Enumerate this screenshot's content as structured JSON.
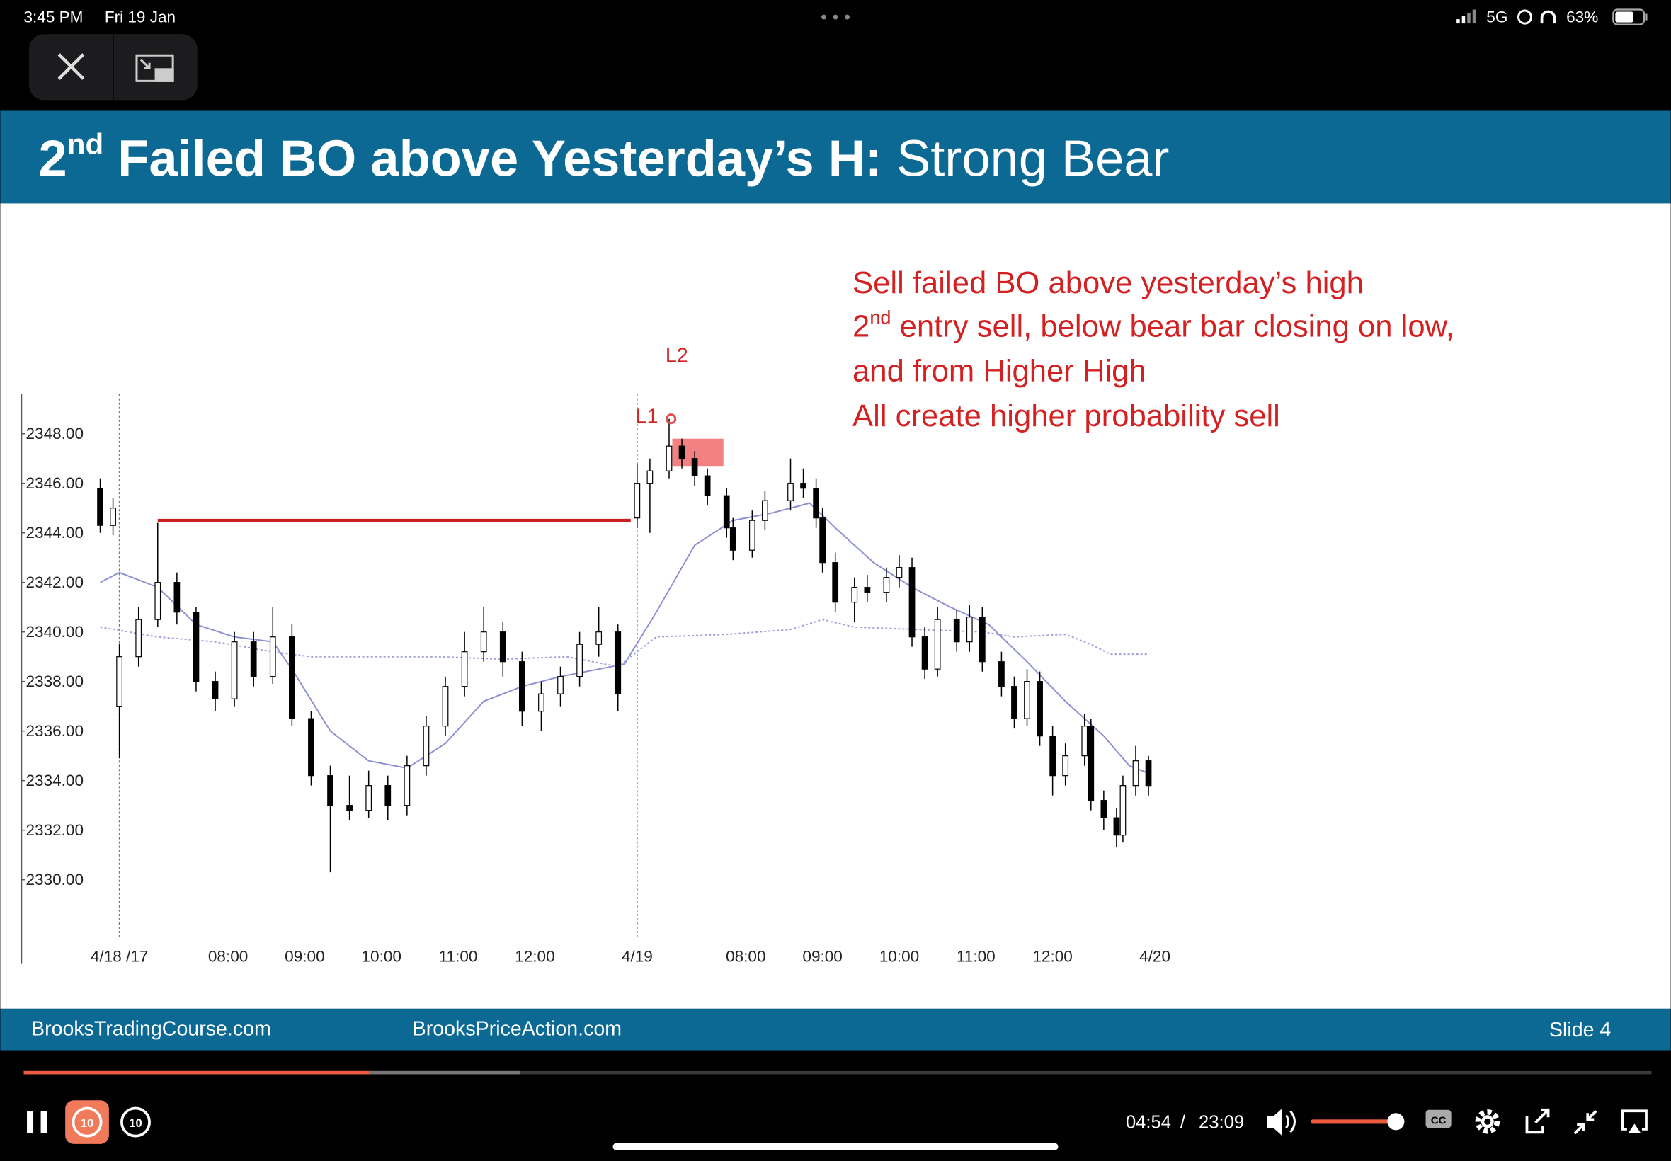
{
  "status_bar": {
    "time": "3:45 PM",
    "date": "Fri 19 Jan",
    "network": "5G",
    "battery": "63%"
  },
  "slide": {
    "title": {
      "ordinal": "2",
      "ordinal_suffix": "nd",
      "bold": "Failed BO above Yesterday’s H:",
      "light": "Strong Bear"
    },
    "notes": [
      {
        "text": "Sell failed BO above yesterday’s high"
      },
      {
        "ordinal": "2",
        "ordinal_suffix": "nd",
        "text": "entry sell, below bear bar closing on low,"
      },
      {
        "text": "and from Higher High"
      },
      {
        "text": "All create higher probability sell"
      }
    ],
    "footer": {
      "left": "BrooksTradingCourse.com",
      "middle": "BrooksPriceAction.com",
      "right": "Slide 4"
    }
  },
  "chart_data": {
    "type": "candlestick",
    "x": [
      -3,
      -1,
      0,
      3,
      6,
      9,
      12,
      15,
      18,
      21,
      24,
      27,
      30,
      33,
      36,
      39,
      42,
      45,
      48,
      51,
      54,
      57,
      60,
      63,
      66,
      69,
      72,
      75,
      78,
      81,
      83,
      86,
      88,
      90,
      92,
      95,
      96,
      99,
      101,
      105,
      107,
      109,
      110,
      112,
      115,
      117,
      120,
      122,
      124,
      126,
      128,
      131,
      133,
      135,
      138,
      140,
      142,
      144,
      146,
      148,
      151,
      152,
      154,
      156,
      157,
      159,
      161
    ],
    "open": [
      2345.8,
      2344.3,
      2337.0,
      2339.0,
      2340.5,
      2342.0,
      2340.8,
      2338.0,
      2337.3,
      2339.6,
      2338.2,
      2339.8,
      2336.5,
      2334.2,
      2333.0,
      2332.8,
      2333.8,
      2333.0,
      2334.6,
      2336.2,
      2337.8,
      2339.2,
      2340.0,
      2338.8,
      2336.8,
      2337.5,
      2338.2,
      2339.5,
      2340.0,
      2344.6,
      2346.0,
      2346.5,
      2347.5,
      2347.0,
      2346.3,
      2345.5,
      2344.2,
      2343.3,
      2344.5,
      2345.3,
      2346.0,
      2345.8,
      2344.6,
      2342.8,
      2341.2,
      2341.8,
      2341.6,
      2342.2,
      2342.6,
      2339.8,
      2338.5,
      2340.5,
      2339.6,
      2340.6,
      2338.8,
      2337.8,
      2336.5,
      2338.0,
      2335.8,
      2334.2,
      2335.0,
      2336.2,
      2333.2,
      2332.5,
      2331.8,
      2333.8,
      2334.8
    ],
    "high": [
      2346.2,
      2345.4,
      2339.5,
      2341.0,
      2344.4,
      2342.4,
      2341.0,
      2338.4,
      2340.0,
      2340.0,
      2341.0,
      2340.3,
      2336.8,
      2334.6,
      2334.2,
      2334.4,
      2334.2,
      2335.0,
      2336.6,
      2338.2,
      2340.0,
      2341.0,
      2340.4,
      2339.2,
      2338.0,
      2338.6,
      2340.0,
      2341.0,
      2340.3,
      2346.8,
      2347.0,
      2348.6,
      2347.8,
      2347.3,
      2346.6,
      2345.8,
      2344.6,
      2344.9,
      2345.7,
      2347.0,
      2346.6,
      2346.2,
      2345.0,
      2343.2,
      2342.2,
      2342.3,
      2342.6,
      2343.1,
      2343.0,
      2340.2,
      2341.0,
      2340.9,
      2341.1,
      2341.0,
      2339.2,
      2338.2,
      2338.5,
      2338.4,
      2336.2,
      2335.5,
      2336.7,
      2336.5,
      2333.6,
      2332.9,
      2334.2,
      2335.4,
      2335.0
    ],
    "low": [
      2344.0,
      2343.9,
      2334.9,
      2338.6,
      2340.2,
      2340.3,
      2337.6,
      2336.8,
      2337.0,
      2337.8,
      2337.9,
      2336.2,
      2333.8,
      2330.3,
      2332.4,
      2332.5,
      2332.4,
      2332.6,
      2334.2,
      2335.8,
      2337.4,
      2338.8,
      2338.2,
      2336.2,
      2336.0,
      2337.0,
      2337.8,
      2339.0,
      2336.8,
      2344.2,
      2344.0,
      2346.2,
      2346.6,
      2345.9,
      2345.1,
      2343.8,
      2342.9,
      2343.0,
      2344.1,
      2344.9,
      2345.4,
      2344.2,
      2342.4,
      2340.8,
      2340.4,
      2341.2,
      2341.2,
      2341.8,
      2339.4,
      2338.1,
      2338.2,
      2339.2,
      2339.2,
      2338.4,
      2337.4,
      2336.1,
      2336.2,
      2335.4,
      2333.4,
      2333.8,
      2334.6,
      2332.8,
      2332.0,
      2331.3,
      2331.5,
      2333.4,
      2333.4
    ],
    "close": [
      2344.3,
      2345.0,
      2339.0,
      2340.5,
      2342.0,
      2340.8,
      2338.0,
      2337.3,
      2339.6,
      2338.2,
      2339.8,
      2336.5,
      2334.2,
      2333.0,
      2332.8,
      2333.8,
      2333.0,
      2334.6,
      2336.2,
      2337.8,
      2339.2,
      2340.0,
      2338.8,
      2336.8,
      2337.5,
      2338.2,
      2339.5,
      2340.0,
      2337.5,
      2346.0,
      2346.5,
      2347.5,
      2347.0,
      2346.3,
      2345.5,
      2344.2,
      2343.3,
      2344.5,
      2345.3,
      2346.0,
      2345.8,
      2344.6,
      2342.8,
      2341.2,
      2341.8,
      2341.6,
      2342.2,
      2342.6,
      2339.8,
      2338.5,
      2340.5,
      2339.6,
      2340.6,
      2338.8,
      2337.8,
      2336.5,
      2338.0,
      2335.8,
      2334.2,
      2335.0,
      2336.2,
      2333.2,
      2332.5,
      2331.8,
      2333.8,
      2334.8,
      2333.8
    ],
    "bull_color": "#ffffff",
    "bear_color": "#000000",
    "xlim": [
      -15.3,
      164.7
    ],
    "ylim": [
      2326.6,
      2349.6
    ],
    "yticks": [
      {
        "value": 2330,
        "label": "2330.00"
      },
      {
        "value": 2332,
        "label": "2332.00"
      },
      {
        "value": 2334,
        "label": "2334.00"
      },
      {
        "value": 2336,
        "label": "2336.00"
      },
      {
        "value": 2338,
        "label": "2338.00"
      },
      {
        "value": 2340,
        "label": "2340.00"
      },
      {
        "value": 2342,
        "label": "2342.00"
      },
      {
        "value": 2344,
        "label": "2344.00"
      },
      {
        "value": 2346,
        "label": "2346.00"
      },
      {
        "value": 2348,
        "label": "2348.00"
      }
    ],
    "xticks": [
      {
        "value": 0,
        "label": "4/18 /17"
      },
      {
        "value": 17,
        "label": "08:00"
      },
      {
        "value": 29,
        "label": "09:00"
      },
      {
        "value": 41,
        "label": "10:00"
      },
      {
        "value": 53,
        "label": "11:00"
      },
      {
        "value": 65,
        "label": "12:00"
      },
      {
        "value": 81,
        "label": "4/19"
      },
      {
        "value": 98,
        "label": "08:00"
      },
      {
        "value": 110,
        "label": "09:00"
      },
      {
        "value": 122,
        "label": "10:00"
      },
      {
        "value": 134,
        "label": "11:00"
      },
      {
        "value": 146,
        "label": "12:00"
      },
      {
        "value": 162,
        "label": "4/20"
      }
    ],
    "separators": [
      0,
      81
    ],
    "lines": [
      {
        "color": "#8c8fd2",
        "style": "solid",
        "x": [
          -3,
          0,
          6,
          12,
          18,
          24,
          27,
          33,
          39,
          45,
          51,
          57,
          63,
          69,
          75,
          79,
          84,
          90,
          96,
          102,
          108,
          112,
          118,
          124,
          130,
          136,
          142,
          148,
          154,
          158,
          161
        ],
        "values": [
          2342,
          2342.4,
          2341.8,
          2340.3,
          2339.8,
          2339.6,
          2338.5,
          2336,
          2334.8,
          2334.5,
          2335.5,
          2337.2,
          2337.8,
          2338.2,
          2338.5,
          2338.7,
          2340.8,
          2343.5,
          2344.5,
          2344.8,
          2345.2,
          2344.2,
          2342.8,
          2341.8,
          2341,
          2340.3,
          2338.8,
          2337.2,
          2335.8,
          2334.6,
          2334.3
        ]
      },
      {
        "color": "#9da0da",
        "style": "dotted",
        "x": [
          -3,
          6,
          15,
          24,
          30,
          40,
          50,
          60,
          70,
          78,
          84,
          95,
          105,
          110,
          115,
          125,
          135,
          140,
          148,
          152,
          155,
          161
        ],
        "values": [
          2340.2,
          2339.8,
          2339.6,
          2339.2,
          2339.0,
          2339.0,
          2339.0,
          2338.9,
          2339.0,
          2338.6,
          2339.8,
          2339.9,
          2340.1,
          2340.5,
          2340.2,
          2340.1,
          2340.0,
          2339.8,
          2339.9,
          2339.5,
          2339.1,
          2339.1
        ]
      }
    ],
    "level": {
      "value": 2344.5,
      "x": [
        6,
        80
      ],
      "color": "#cc1f1f"
    },
    "zone": {
      "x": [
        86.5,
        94.5
      ],
      "y": [
        2346.7,
        2347.8
      ],
      "color": "#f26b6b"
    },
    "marker": {
      "x": 86.3,
      "value": 2348.6,
      "color": "#e05050"
    },
    "annotations": [
      {
        "text": "L1"
      },
      {
        "text": "L2"
      }
    ]
  },
  "player": {
    "elapsed": "04:54",
    "separator": "/",
    "duration": "23:09",
    "rewind_label": "10",
    "forward_label": "10",
    "played": 0.212,
    "buffered": 0.305,
    "volume": 1.0
  }
}
